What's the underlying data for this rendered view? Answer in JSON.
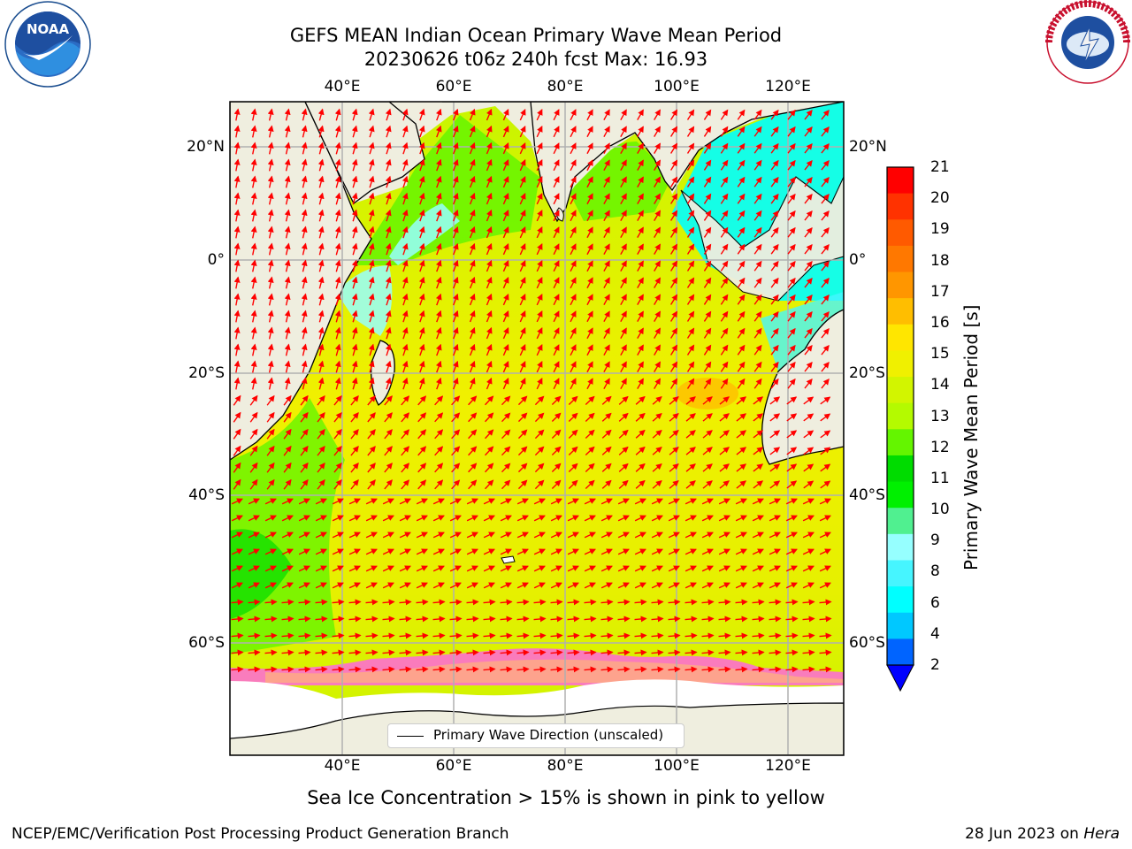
{
  "header": {
    "title_line1": "GEFS MEAN Indian Ocean Primary Wave Mean Period",
    "title_line2": "20230626 t06z 240h fcst   Max: 16.93"
  },
  "logos": {
    "left": "NOAA",
    "left_ring_text": "NATIONAL OCEANIC AND ATMOSPHERIC ADMINISTRATION · U.S. DEPARTMENT OF COMMERCE",
    "right_ring_text": "NATIONAL WEATHER SERVICE"
  },
  "map": {
    "lon_ticks": [
      "40°E",
      "60°E",
      "80°E",
      "100°E",
      "120°E"
    ],
    "lat_ticks": [
      "20°N",
      "0°",
      "20°S",
      "40°S",
      "60°S"
    ],
    "lon_range": [
      20,
      130
    ],
    "lat_range": [
      -70,
      28
    ],
    "legend_label": "Primary Wave Direction (unscaled)",
    "colors": {
      "land": "#efeedf",
      "ice": "#ffffff",
      "sea_ice_edge": "#ff66dd",
      "arrow": "#ff0000",
      "grid": "#b0b0b0"
    }
  },
  "colorbar": {
    "title": "Primary Wave Mean Period [s]",
    "labels": [
      "21",
      "20",
      "19",
      "18",
      "17",
      "16",
      "15",
      "14",
      "13",
      "12",
      "11",
      "10",
      "9",
      "8",
      "6",
      "4",
      "2"
    ],
    "colors_top_to_bottom": [
      "#ff0000",
      "#ff3200",
      "#ff5a00",
      "#ff7800",
      "#ff9600",
      "#ffbe00",
      "#ffe600",
      "#f0f000",
      "#d2f500",
      "#b4fa00",
      "#64f500",
      "#00dc00",
      "#00f000",
      "#50f090",
      "#96ffff",
      "#46f5ff",
      "#00ffff",
      "#00c8ff",
      "#0064ff"
    ]
  },
  "caption": "Sea Ice Concentration > 15% is shown in pink to yellow",
  "footer": {
    "left": "NCEP/EMC/Verification Post Processing Product Generation Branch",
    "right_date": "28 Jun 2023 on ",
    "right_host": "Hera"
  }
}
